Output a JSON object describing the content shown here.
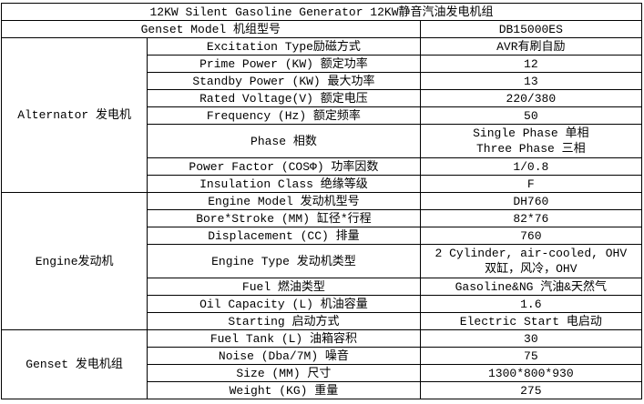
{
  "title": "12KW Silent Gasoline Generator 12KW静音汽油发电机组",
  "model": {
    "label": "Genset Model 机组型号",
    "value": "DB15000ES"
  },
  "groups": [
    {
      "name": "Alternator 发电机",
      "rows": [
        {
          "label": "Excitation Type励磁方式",
          "value": "AVR有刷自励"
        },
        {
          "label": "Prime Power (KW) 额定功率",
          "value": "12"
        },
        {
          "label": "Standby Power (KW) 最大功率",
          "value": "13"
        },
        {
          "label": "Rated Voltage(V) 额定电压",
          "value": "220/380"
        },
        {
          "label": "Frequency (Hz) 额定频率",
          "value": "50"
        },
        {
          "label": "Phase 相数",
          "value": "Single Phase 单相",
          "value2": "Three Phase 三相"
        },
        {
          "label": "Power Factor (COSΦ) 功率因数",
          "value": "1/0.8"
        },
        {
          "label": "Insulation Class 绝缘等级",
          "value": "F"
        }
      ]
    },
    {
      "name": "Engine发动机",
      "rows": [
        {
          "label": "Engine Model 发动机型号",
          "value": "DH760"
        },
        {
          "label": "Bore*Stroke (MM) 缸径*行程",
          "value": "82*76"
        },
        {
          "label": "Displacement (CC) 排量",
          "value": "760"
        },
        {
          "label": "Engine Type 发动机类型",
          "value": "2 Cylinder, air-cooled, OHV",
          "value2": "双缸，风冷，OHV"
        },
        {
          "label": "Fuel 燃油类型",
          "value": "Gasoline&NG 汽油&天然气"
        },
        {
          "label": "Oil Capacity (L) 机油容量",
          "value": "1.6"
        },
        {
          "label": "Starting 启动方式",
          "value": "Electric Start 电启动"
        }
      ]
    },
    {
      "name": "Genset 发电机组",
      "rows": [
        {
          "label": "Fuel Tank (L) 油箱容积",
          "value": "30"
        },
        {
          "label": "Noise (Dba/7M) 噪音",
          "value": "75"
        },
        {
          "label": "Size (MM) 尺寸",
          "value": "1300*800*930"
        },
        {
          "label": "Weight (KG) 重量",
          "value": "275"
        }
      ]
    }
  ]
}
